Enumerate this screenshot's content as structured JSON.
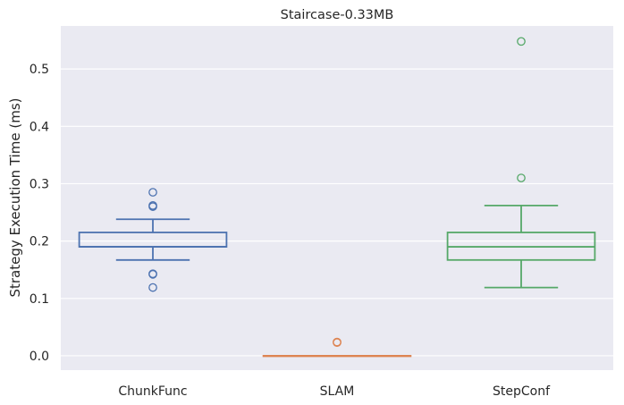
{
  "chart_data": {
    "type": "boxplot",
    "title": "Staircase-0.33MB",
    "xlabel": "",
    "ylabel": "Strategy Execution Time (ms)",
    "ylim": [
      -0.025,
      0.575
    ],
    "yticks": [
      "0.0",
      "0.1",
      "0.2",
      "0.3",
      "0.4",
      "0.5"
    ],
    "yticks_values": [
      0.0,
      0.1,
      0.2,
      0.3,
      0.4,
      0.5
    ],
    "grid": true,
    "background": "#eaeaf2",
    "categories": [
      "ChunkFunc",
      "SLAM",
      "StepConf"
    ],
    "boxes": [
      {
        "name": "ChunkFunc",
        "color": "#4c72b0",
        "whisker_low": 0.167,
        "q1": 0.19,
        "median": 0.19,
        "q3": 0.215,
        "whisker_high": 0.238,
        "fliers": [
          0.285,
          0.262,
          0.26,
          0.143,
          0.142,
          0.119
        ]
      },
      {
        "name": "SLAM",
        "color": "#dd8452",
        "whisker_low": 0.0,
        "q1": 0.0,
        "median": 0.0,
        "q3": 0.0,
        "whisker_high": 0.0,
        "fliers": [
          0.024,
          0.023
        ]
      },
      {
        "name": "StepConf",
        "color": "#55a868",
        "whisker_low": 0.119,
        "q1": 0.167,
        "median": 0.19,
        "q3": 0.215,
        "whisker_high": 0.262,
        "fliers": [
          0.548,
          0.31
        ]
      }
    ]
  }
}
